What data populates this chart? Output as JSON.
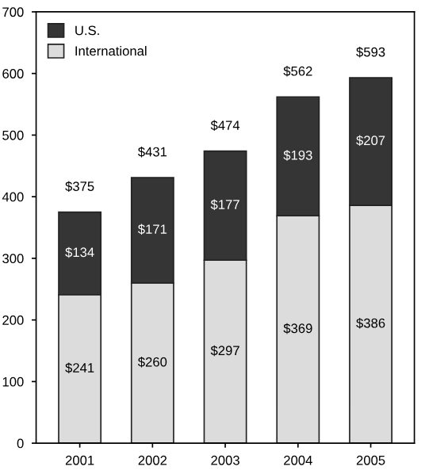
{
  "chart_data": {
    "type": "bar",
    "stacked": true,
    "categories": [
      "2001",
      "2002",
      "2003",
      "2004",
      "2005"
    ],
    "series": [
      {
        "name": "International",
        "color": "#dcdcdc",
        "values": [
          241,
          260,
          297,
          369,
          386
        ],
        "value_labels": [
          "$241",
          "$260",
          "$297",
          "$369",
          "$386"
        ]
      },
      {
        "name": "U.S.",
        "color": "#353535",
        "values": [
          134,
          171,
          177,
          193,
          207
        ],
        "value_labels": [
          "$134",
          "$171",
          "$177",
          "$193",
          "$207"
        ]
      }
    ],
    "totals": [
      "$375",
      "$431",
      "$474",
      "$562",
      "$593"
    ],
    "ylim": [
      0,
      700
    ],
    "yticks": [
      0,
      100,
      200,
      300,
      400,
      500,
      600,
      700
    ],
    "grid": false,
    "legend": "top left"
  }
}
